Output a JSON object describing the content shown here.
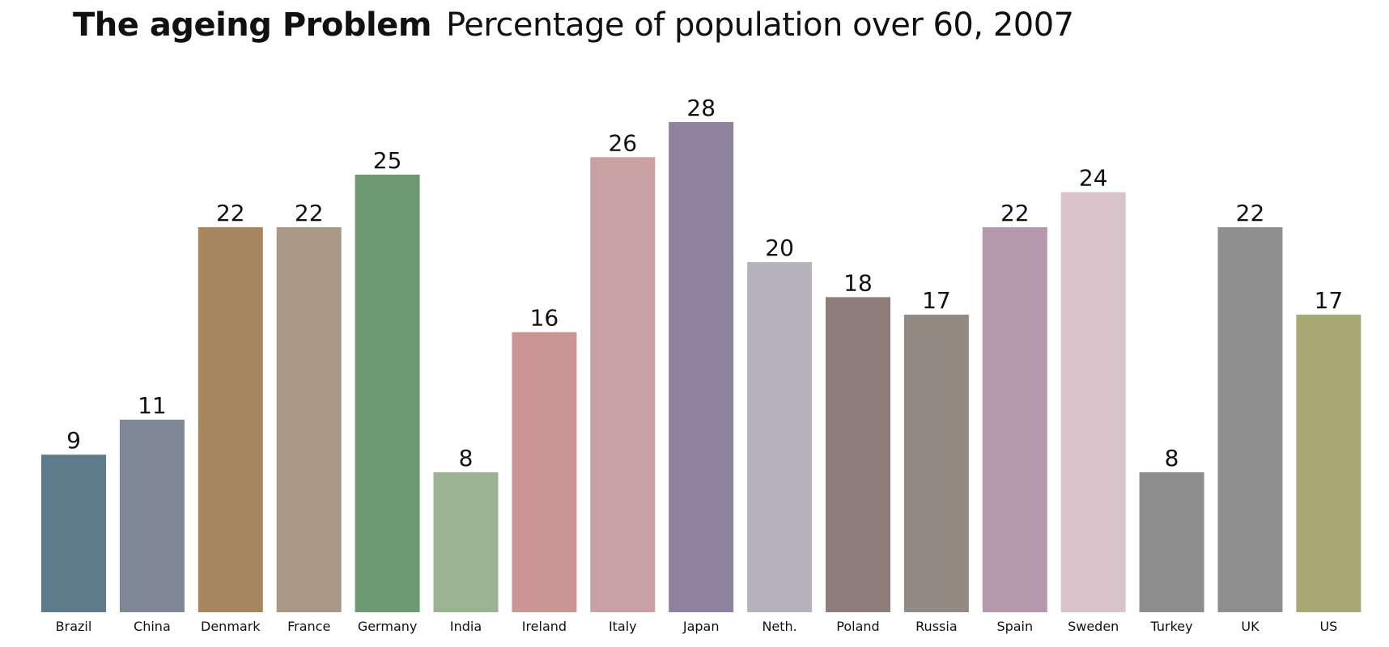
{
  "chart_data": {
    "type": "bar",
    "title": "The ageing Problem",
    "subtitle": "Percentage of population over 60, 2007",
    "categories": [
      "Brazil",
      "China",
      "Denmark",
      "France",
      "Germany",
      "India",
      "Ireland",
      "Italy",
      "Japan",
      "Neth.",
      "Poland",
      "Russia",
      "Spain",
      "Sweden",
      "Turkey",
      "UK",
      "US"
    ],
    "values": [
      9,
      11,
      22,
      22,
      25,
      8,
      16,
      26,
      28,
      20,
      18,
      17,
      22,
      24,
      8,
      22,
      17
    ],
    "colors": [
      "#5e7b8c",
      "#7d8795",
      "#a8865f",
      "#a89885",
      "#6e9a72",
      "#9bb392",
      "#cc9595",
      "#c9a1a2",
      "#8f829f",
      "#b5b1bd",
      "#8e7d7b",
      "#948a83",
      "#b597ae",
      "#d9c4cc",
      "#8d8d8d",
      "#8f8f8f",
      "#a7a872"
    ],
    "ylim": [
      0,
      28
    ],
    "grid": false,
    "legend": "none"
  }
}
